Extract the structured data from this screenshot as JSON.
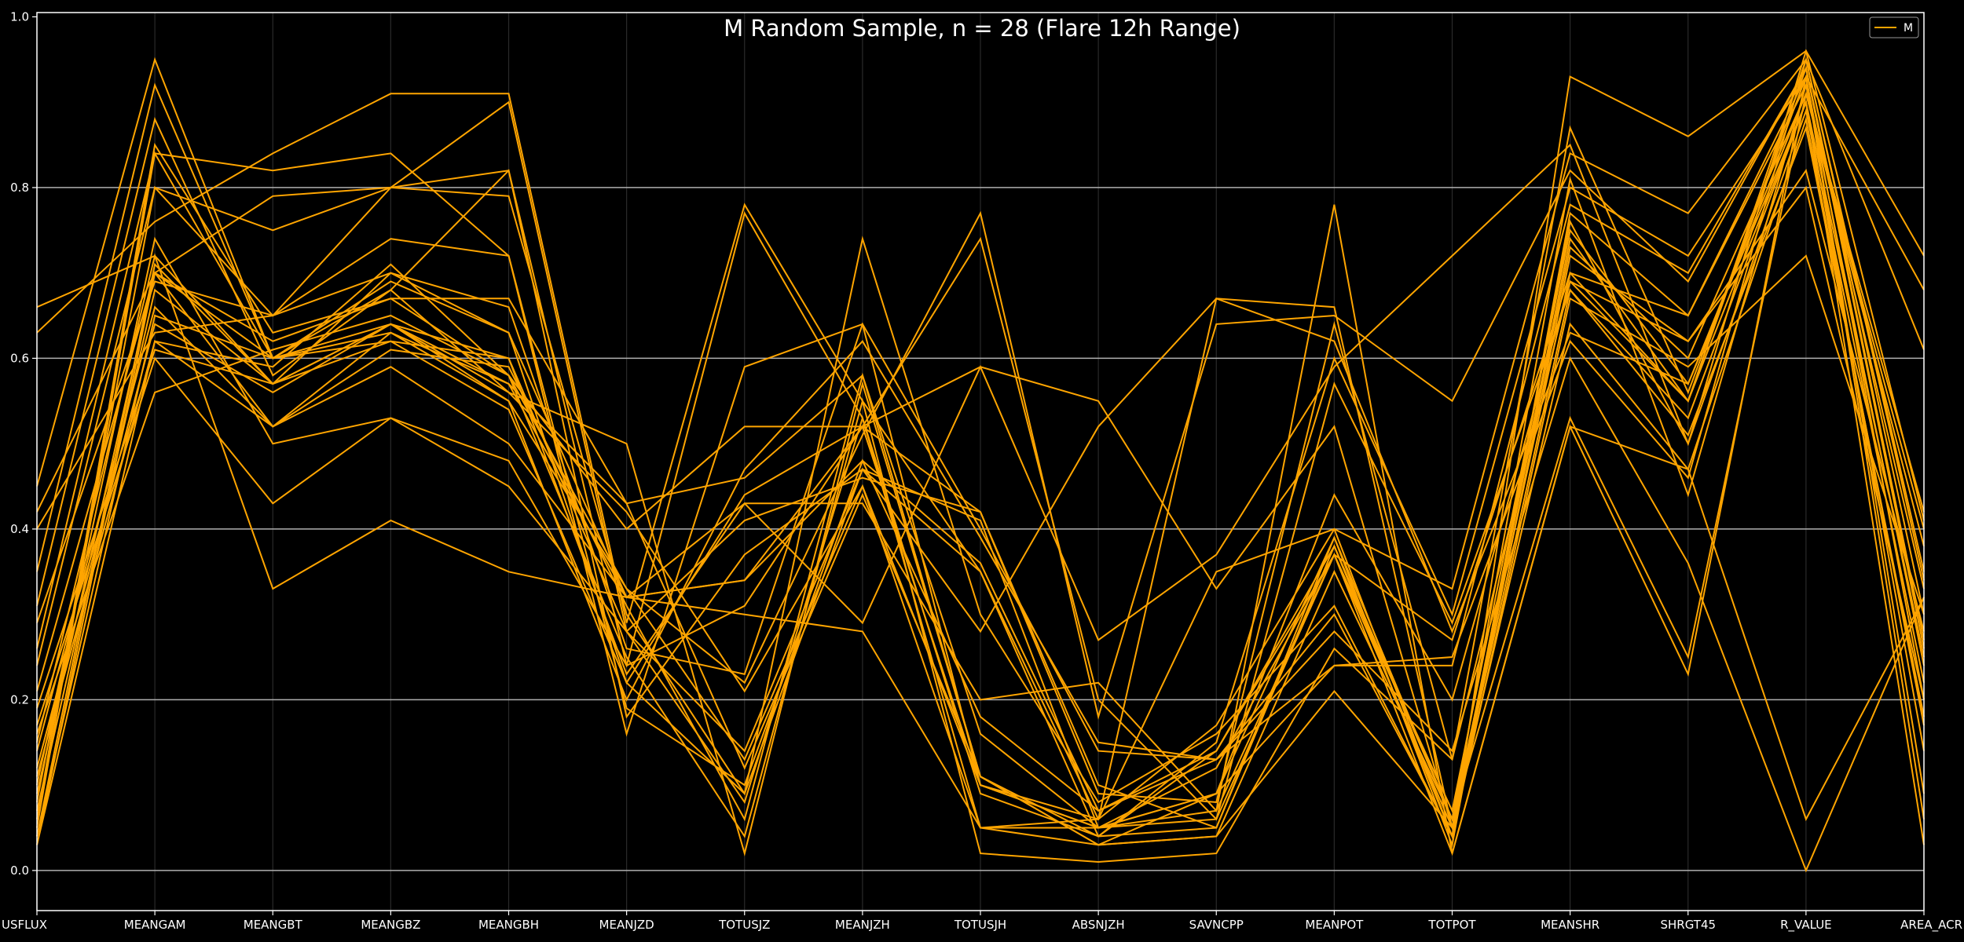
{
  "chart_data": {
    "type": "line",
    "title": "M Random Sample, n = 28 (Flare 12h Range)",
    "xlabel": "",
    "ylabel": "",
    "categories": [
      "USFLUX",
      "MEANGAM",
      "MEANGBT",
      "MEANGBZ",
      "MEANGBH",
      "MEANJZD",
      "TOTUSJZ",
      "MEANJZH",
      "TOTUSJH",
      "ABSNJZH",
      "SAVNCPP",
      "MEANPOT",
      "TOTPOT",
      "MEANSHR",
      "SHRGT45",
      "R_VALUE",
      "AREA_ACR"
    ],
    "ylim": [
      -0.047,
      1.005
    ],
    "yticks": [
      "0.0",
      "0.2",
      "0.4",
      "0.6",
      "0.8",
      "1.0"
    ],
    "grid": "horizontal",
    "legend": {
      "position": "top-right",
      "entries": [
        "M"
      ]
    },
    "colors": {
      "background": "#000000",
      "line": "#ffa500",
      "grid": "#b0b0b0",
      "axis": "#ffffff",
      "text": "#ffffff"
    },
    "series": [
      {
        "values": [
          0.66,
          0.72,
          0.57,
          0.64,
          0.55,
          0.33,
          0.13,
          0.45,
          0.1,
          0.05,
          0.06,
          0.37,
          0.05,
          0.68,
          0.53,
          0.9,
          0.25
        ]
      },
      {
        "values": [
          0.63,
          0.76,
          0.84,
          0.91,
          0.91,
          0.29,
          0.78,
          0.55,
          0.35,
          0.04,
          0.05,
          0.38,
          0.06,
          0.7,
          0.55,
          0.94,
          0.3
        ]
      },
      {
        "values": [
          0.45,
          0.95,
          0.6,
          0.68,
          0.56,
          0.5,
          0.02,
          0.57,
          0.11,
          0.04,
          0.15,
          0.6,
          0.3,
          0.8,
          0.72,
          0.93,
          0.2
        ]
      },
      {
        "values": [
          0.42,
          0.7,
          0.79,
          0.8,
          0.79,
          0.3,
          0.09,
          0.47,
          0.35,
          0.06,
          0.17,
          0.4,
          0.33,
          0.84,
          0.77,
          0.95,
          0.61
        ]
      },
      {
        "values": [
          0.4,
          0.63,
          0.65,
          0.74,
          0.72,
          0.16,
          0.59,
          0.64,
          0.1,
          0.05,
          0.07,
          0.37,
          0.07,
          0.75,
          0.57,
          0.91,
          0.4
        ]
      },
      {
        "values": [
          0.35,
          0.92,
          0.6,
          0.63,
          0.57,
          0.32,
          0.43,
          0.29,
          0.59,
          0.27,
          0.37,
          0.59,
          0.72,
          0.85,
          0.5,
          0.96,
          0.72
        ]
      },
      {
        "values": [
          0.31,
          0.88,
          0.58,
          0.68,
          0.82,
          0.24,
          0.31,
          0.52,
          0.42,
          0.09,
          0.08,
          0.64,
          0.13,
          0.87,
          0.56,
          0.93,
          0.68
        ]
      },
      {
        "values": [
          0.29,
          0.69,
          0.65,
          0.7,
          0.66,
          0.26,
          0.23,
          0.64,
          0.4,
          0.14,
          0.13,
          0.3,
          0.04,
          0.76,
          0.5,
          0.89,
          0.22
        ]
      },
      {
        "values": [
          0.26,
          0.84,
          0.82,
          0.84,
          0.72,
          0.19,
          0.1,
          0.48,
          0.18,
          0.07,
          0.14,
          0.38,
          0.04,
          0.93,
          0.86,
          0.96,
          0.41
        ]
      },
      {
        "values": [
          0.24,
          0.8,
          0.75,
          0.8,
          0.9,
          0.28,
          0.08,
          0.53,
          0.05,
          0.03,
          0.04,
          0.35,
          0.06,
          0.81,
          0.44,
          0.92,
          0.24
        ]
      },
      {
        "values": [
          0.21,
          0.7,
          0.6,
          0.69,
          0.63,
          0.22,
          0.09,
          0.74,
          0.3,
          0.08,
          0.16,
          0.31,
          0.04,
          0.72,
          0.62,
          0.8,
          0.2
        ]
      },
      {
        "values": [
          0.19,
          0.61,
          0.57,
          0.7,
          0.63,
          0.32,
          0.34,
          0.52,
          0.1,
          0.06,
          0.67,
          0.62,
          0.28,
          0.63,
          0.57,
          0.9,
          0.14
        ]
      },
      {
        "values": [
          0.17,
          0.6,
          0.43,
          0.53,
          0.48,
          0.24,
          0.77,
          0.53,
          0.09,
          0.04,
          0.14,
          0.37,
          0.02,
          0.52,
          0.23,
          0.93,
          0.06
        ]
      },
      {
        "values": [
          0.16,
          0.56,
          0.61,
          0.65,
          0.58,
          0.4,
          0.52,
          0.52,
          0.74,
          0.2,
          0.06,
          0.57,
          0.29,
          0.68,
          0.51,
          0.87,
          0.18
        ]
      },
      {
        "values": [
          0.15,
          0.72,
          0.33,
          0.41,
          0.35,
          0.32,
          0.3,
          0.28,
          0.05,
          0.05,
          0.09,
          0.39,
          0.06,
          0.53,
          0.25,
          0.91,
          0.38
        ]
      },
      {
        "values": [
          0.14,
          0.66,
          0.52,
          0.59,
          0.5,
          0.32,
          0.34,
          0.48,
          0.36,
          0.07,
          0.13,
          0.28,
          0.14,
          0.6,
          0.36,
          0.0,
          0.32
        ]
      },
      {
        "values": [
          0.12,
          0.64,
          0.56,
          0.64,
          0.57,
          0.43,
          0.46,
          0.58,
          0.16,
          0.05,
          0.09,
          0.24,
          0.25,
          0.62,
          0.46,
          0.95,
          0.35
        ]
      },
      {
        "values": [
          0.11,
          0.62,
          0.59,
          0.71,
          0.58,
          0.33,
          0.22,
          0.51,
          0.77,
          0.18,
          0.64,
          0.65,
          0.55,
          0.82,
          0.69,
          0.94,
          0.27
        ]
      },
      {
        "values": [
          0.1,
          0.74,
          0.5,
          0.53,
          0.45,
          0.28,
          0.14,
          0.47,
          0.28,
          0.52,
          0.67,
          0.66,
          0.05,
          0.74,
          0.55,
          0.9,
          0.03
        ]
      },
      {
        "values": [
          0.09,
          0.7,
          0.52,
          0.61,
          0.59,
          0.31,
          0.06,
          0.58,
          0.11,
          0.03,
          0.04,
          0.21,
          0.05,
          0.64,
          0.47,
          0.88,
          0.17
        ]
      },
      {
        "values": [
          0.08,
          0.8,
          0.65,
          0.8,
          0.82,
          0.18,
          0.37,
          0.47,
          0.41,
          0.05,
          0.12,
          0.37,
          0.27,
          0.7,
          0.65,
          0.93,
          0.09
        ]
      },
      {
        "values": [
          0.07,
          0.68,
          0.57,
          0.64,
          0.56,
          0.42,
          0.21,
          0.45,
          0.05,
          0.06,
          0.35,
          0.4,
          0.04,
          0.67,
          0.59,
          0.72,
          0.3
        ]
      },
      {
        "values": [
          0.06,
          0.85,
          0.63,
          0.67,
          0.58,
          0.25,
          0.04,
          0.55,
          0.02,
          0.01,
          0.02,
          0.26,
          0.13,
          0.69,
          0.55,
          0.95,
          0.34
        ]
      },
      {
        "values": [
          0.05,
          0.84,
          0.6,
          0.64,
          0.6,
          0.23,
          0.43,
          0.43,
          0.2,
          0.22,
          0.07,
          0.78,
          0.02,
          0.52,
          0.47,
          0.06,
          0.32
        ]
      },
      {
        "values": [
          0.04,
          0.71,
          0.57,
          0.62,
          0.54,
          0.22,
          0.44,
          0.52,
          0.59,
          0.55,
          0.33,
          0.52,
          0.05,
          0.73,
          0.6,
          0.91,
          0.42
        ]
      },
      {
        "values": [
          0.04,
          0.65,
          0.6,
          0.62,
          0.6,
          0.28,
          0.41,
          0.46,
          0.42,
          0.1,
          0.05,
          0.39,
          0.03,
          0.77,
          0.65,
          0.92,
          0.33
        ]
      },
      {
        "values": [
          0.03,
          0.62,
          0.52,
          0.63,
          0.55,
          0.2,
          0.47,
          0.62,
          0.39,
          0.15,
          0.13,
          0.24,
          0.24,
          0.78,
          0.7,
          0.94,
          0.26
        ]
      },
      {
        "values": [
          0.03,
          0.7,
          0.62,
          0.67,
          0.67,
          0.43,
          0.12,
          0.44,
          0.11,
          0.03,
          0.09,
          0.44,
          0.2,
          0.69,
          0.62,
          0.82,
          0.28
        ]
      }
    ]
  }
}
